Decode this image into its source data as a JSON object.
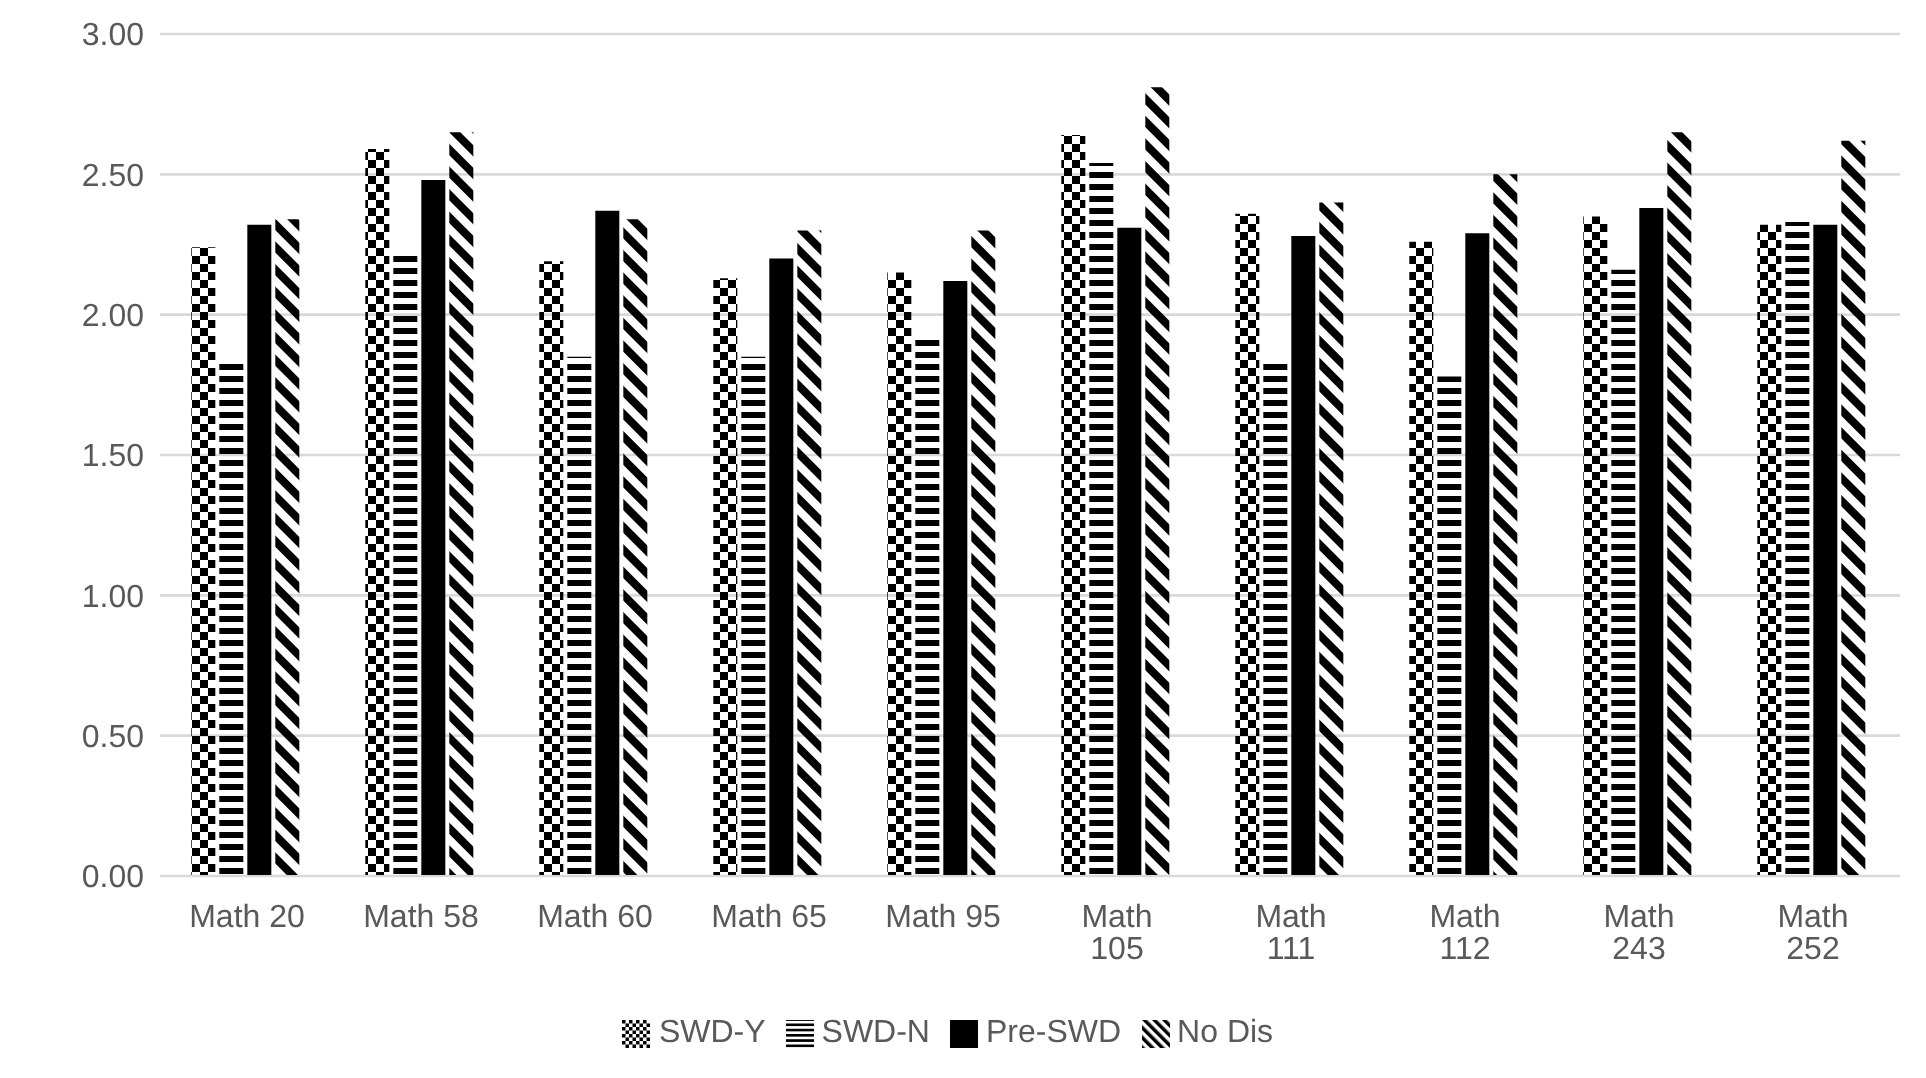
{
  "chart_data": {
    "type": "bar",
    "categories": [
      "Math 20",
      "Math 58",
      "Math 60",
      "Math 65",
      "Math 95",
      "Math 105",
      "Math 111",
      "Math 112",
      "Math 243",
      "Math 252"
    ],
    "series": [
      {
        "name": "SWD-Y",
        "color": "#000000",
        "values": [
          2.24,
          2.59,
          2.19,
          2.13,
          2.15,
          2.64,
          2.36,
          2.26,
          2.35,
          2.32
        ]
      },
      {
        "name": "SWD-N",
        "color": "#000000",
        "values": [
          1.83,
          2.21,
          1.85,
          1.85,
          1.92,
          2.54,
          1.84,
          1.78,
          2.16,
          2.33
        ]
      },
      {
        "name": "Pre-SWD",
        "color": "#000000",
        "values": [
          2.32,
          2.48,
          2.37,
          2.2,
          2.12,
          2.31,
          2.28,
          2.29,
          2.38,
          2.32
        ]
      },
      {
        "name": "No Dis",
        "color": "#000000",
        "values": [
          2.34,
          2.65,
          2.34,
          2.3,
          2.3,
          2.81,
          2.4,
          2.5,
          2.65,
          2.62
        ]
      }
    ],
    "ylim": [
      0,
      3
    ],
    "yticks": [
      {
        "value": 0,
        "label": "0.00"
      },
      {
        "value": 0.5,
        "label": "0.50"
      },
      {
        "value": 1,
        "label": "1.00"
      },
      {
        "value": 1.5,
        "label": "1.50"
      },
      {
        "value": 2,
        "label": "2.00"
      },
      {
        "value": 2.5,
        "label": "2.50"
      },
      {
        "value": 3,
        "label": "3.00"
      }
    ],
    "grid": "y",
    "legend": "bottom"
  }
}
